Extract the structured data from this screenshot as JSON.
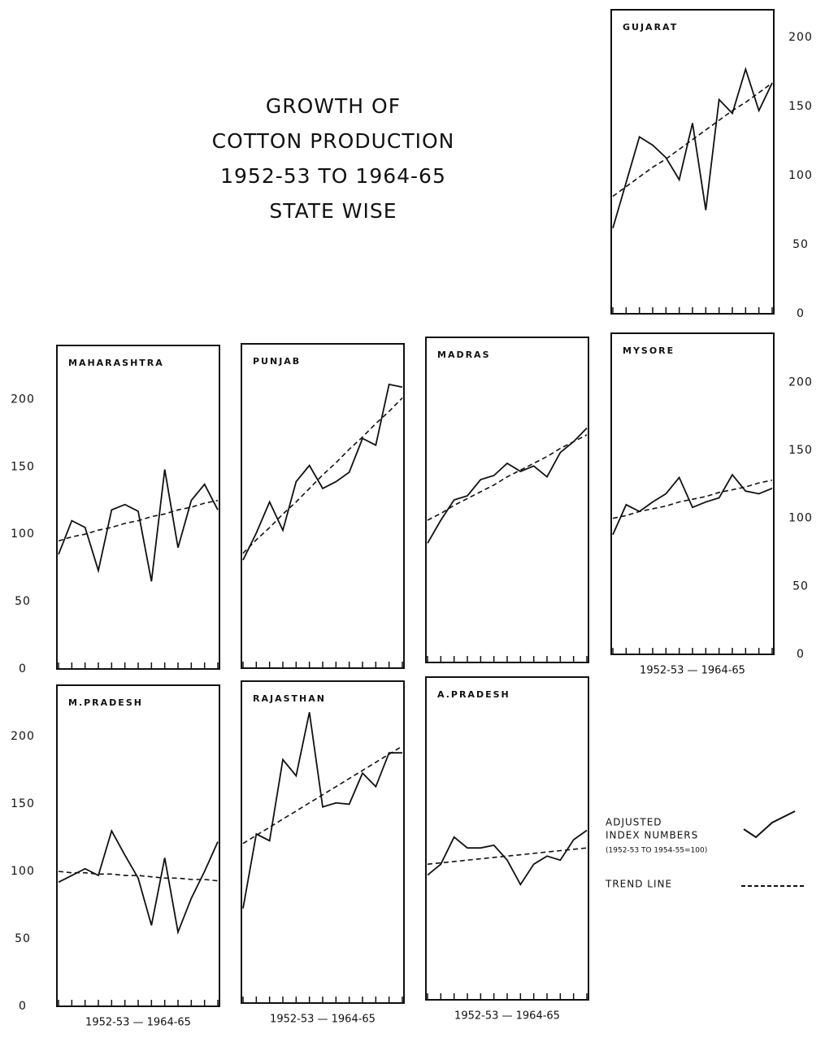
{
  "title": [
    "GROWTH OF",
    "COTTON PRODUCTION",
    "1952-53 TO 1964-65",
    "STATE WISE"
  ],
  "legend": {
    "line1": "ADJUSTED",
    "line2": "INDEX NUMBERS",
    "note": "(1952-53 TO 1954-55=100)",
    "trend": "TREND LINE"
  },
  "chart_data": [
    {
      "type": "line",
      "title": "GUJARAT",
      "categories": [
        null,
        null,
        null,
        null,
        null,
        null,
        null,
        null,
        null,
        null,
        null,
        null,
        null
      ],
      "ylim": [
        0,
        220
      ],
      "yticks": [
        0,
        50,
        100,
        150,
        200
      ],
      "yaxis_side": "right",
      "series": [
        {
          "color": "#111",
          "dash": false,
          "values": [
            62,
            95,
            128,
            122,
            113,
            97,
            138,
            75,
            155,
            145,
            177,
            147,
            167
          ]
        },
        {
          "color": "#111",
          "dash": true,
          "values": [
            85,
            92,
            99,
            106,
            112,
            119,
            126,
            133,
            140,
            147,
            153,
            160,
            167
          ]
        }
      ]
    },
    {
      "type": "line",
      "title": "MAHARASHTRA",
      "categories": [
        null,
        null,
        null,
        null,
        null,
        null,
        null,
        null,
        null,
        null,
        null,
        null,
        null
      ],
      "ylim": [
        0,
        240
      ],
      "yticks": [
        0,
        50,
        100,
        150,
        200
      ],
      "yaxis_side": "left",
      "series": [
        {
          "color": "#111",
          "dash": false,
          "values": [
            85,
            110,
            105,
            73,
            118,
            122,
            117,
            65,
            148,
            90,
            125,
            137,
            118
          ]
        },
        {
          "color": "#111",
          "dash": true,
          "values": [
            95,
            98,
            100,
            103,
            105,
            108,
            110,
            113,
            115,
            118,
            120,
            123,
            125
          ]
        }
      ]
    },
    {
      "type": "line",
      "title": "PUNJAB",
      "categories": [
        null,
        null,
        null,
        null,
        null,
        null,
        null,
        null,
        null,
        null,
        null,
        null,
        null
      ],
      "ylim": [
        0,
        240
      ],
      "series": [
        {
          "color": "#111",
          "dash": false,
          "values": [
            80,
            100,
            123,
            102,
            138,
            150,
            133,
            138,
            145,
            170,
            165,
            210,
            208
          ]
        },
        {
          "color": "#111",
          "dash": true,
          "values": [
            85,
            95,
            104,
            114,
            123,
            133,
            143,
            152,
            162,
            171,
            181,
            190,
            200
          ]
        }
      ]
    },
    {
      "type": "line",
      "title": "MADRAS",
      "categories": [
        null,
        null,
        null,
        null,
        null,
        null,
        null,
        null,
        null,
        null,
        null,
        null,
        null
      ],
      "ylim": [
        0,
        240
      ],
      "series": [
        {
          "color": "#111",
          "dash": false,
          "values": [
            88,
            105,
            120,
            123,
            135,
            138,
            147,
            141,
            145,
            137,
            155,
            163,
            173
          ]
        },
        {
          "color": "#111",
          "dash": true,
          "values": [
            105,
            110,
            116,
            121,
            126,
            131,
            137,
            142,
            147,
            152,
            158,
            163,
            168
          ]
        }
      ]
    },
    {
      "type": "line",
      "title": "MYSORE",
      "categories": [
        null,
        null,
        null,
        null,
        null,
        null,
        null,
        null,
        null,
        null,
        null,
        null,
        null
      ],
      "ylim": [
        0,
        236
      ],
      "yticks": [
        0,
        50,
        100,
        150,
        200
      ],
      "yaxis_side": "right",
      "xlabel": "1952-53 — 1964-65",
      "series": [
        {
          "color": "#111",
          "dash": false,
          "values": [
            88,
            110,
            105,
            112,
            118,
            130,
            108,
            112,
            115,
            132,
            120,
            118,
            122
          ]
        },
        {
          "color": "#111",
          "dash": true,
          "values": [
            100,
            102,
            105,
            107,
            109,
            112,
            114,
            116,
            119,
            121,
            123,
            126,
            128
          ]
        }
      ]
    },
    {
      "type": "line",
      "title": "M.PRADESH",
      "categories": [
        null,
        null,
        null,
        null,
        null,
        null,
        null,
        null,
        null,
        null,
        null,
        null,
        null
      ],
      "ylim": [
        0,
        238
      ],
      "yticks": [
        0,
        50,
        100,
        150,
        200
      ],
      "yaxis_side": "left",
      "xlabel": "1952-53 — 1964-65",
      "series": [
        {
          "color": "#111",
          "dash": false,
          "values": [
            92,
            97,
            102,
            97,
            130,
            112,
            95,
            60,
            110,
            55,
            80,
            100,
            122
          ]
        },
        {
          "color": "#111",
          "dash": true,
          "values": [
            100,
            99,
            99,
            98,
            98,
            97,
            97,
            96,
            95,
            95,
            94,
            94,
            93
          ]
        }
      ]
    },
    {
      "type": "line",
      "title": "RAJASTHAN",
      "categories": [
        null,
        null,
        null,
        null,
        null,
        null,
        null,
        null,
        null,
        null,
        null,
        null,
        null
      ],
      "ylim": [
        0,
        238
      ],
      "xlabel": "1952-53 — 1964-65",
      "series": [
        {
          "color": "#111",
          "dash": false,
          "values": [
            70,
            125,
            120,
            180,
            168,
            215,
            145,
            148,
            147,
            170,
            160,
            185,
            185
          ]
        },
        {
          "color": "#111",
          "dash": true,
          "values": [
            118,
            124,
            130,
            136,
            142,
            148,
            154,
            160,
            166,
            172,
            178,
            184,
            190
          ]
        }
      ]
    },
    {
      "type": "line",
      "title": "A.PRADESH",
      "categories": [
        null,
        null,
        null,
        null,
        null,
        null,
        null,
        null,
        null,
        null,
        null,
        null,
        null
      ],
      "ylim": [
        0,
        238
      ],
      "xlabel": "1952-53 — 1964-65",
      "series": [
        {
          "color": "#111",
          "dash": false,
          "values": [
            92,
            100,
            120,
            112,
            112,
            114,
            103,
            85,
            100,
            106,
            103,
            118,
            125
          ]
        },
        {
          "color": "#111",
          "dash": true,
          "values": [
            100,
            101,
            102,
            103,
            104,
            105,
            106,
            107,
            108,
            109,
            110,
            111,
            112
          ]
        }
      ]
    }
  ]
}
